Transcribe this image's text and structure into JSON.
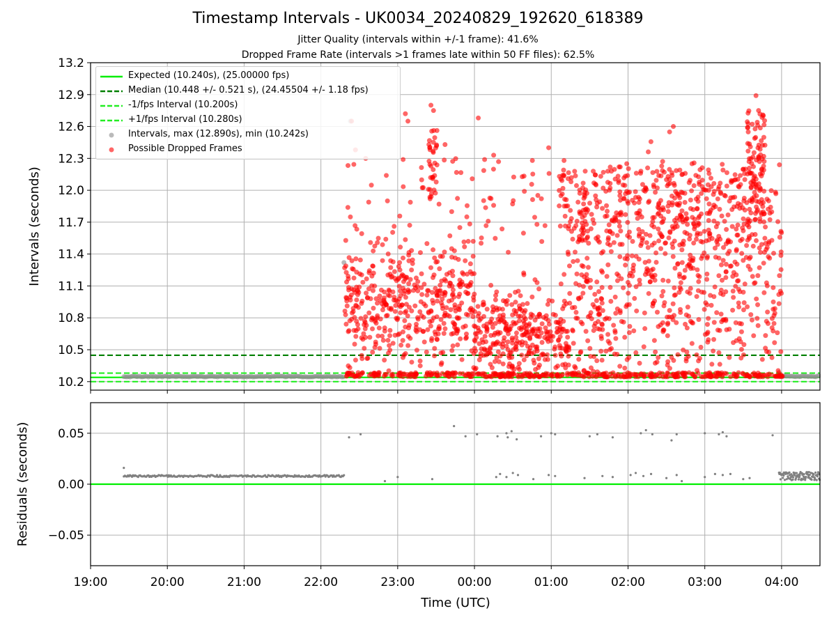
{
  "title": "Timestamp Intervals - UK0034_20240829_192620_618389",
  "subtitle_1": "Jitter Quality (intervals within +/-1 frame): 41.6%",
  "subtitle_2": "Dropped Frame Rate (intervals >1 frames late within 50 FF files): 62.5%",
  "colors": {
    "expected": "#00ee00",
    "median": "#007f00",
    "jitter_band": "#22ee22",
    "intervals": "#8c8c8c",
    "dropped": "#ff0000",
    "residuals": "#808080",
    "grid": "#b0b0b0"
  },
  "chart_data": [
    {
      "type": "scatter",
      "ylabel": "Intervals (seconds)",
      "ylim": [
        10.12,
        13.2
      ],
      "yticks": [
        "10.2",
        "10.5",
        "10.8",
        "11.1",
        "11.4",
        "11.7",
        "12.0",
        "12.3",
        "12.6",
        "12.9",
        "13.2"
      ],
      "xlim": [
        "19:00",
        "04:30"
      ],
      "grid": true,
      "legend_position": "upper-left",
      "legend": [
        "Expected (10.240s), (25.00000 fps)",
        "Median (10.448 +/- 0.521 s), (24.45504 +/- 1.18 fps)",
        "-1/fps Interval (10.200s)",
        "+1/fps Interval (10.280s)",
        "Intervals, max (12.890s), min (10.242s)",
        "Possible Dropped Frames"
      ],
      "reference_lines": [
        {
          "name": "Expected",
          "y": 10.24,
          "style": "solid"
        },
        {
          "name": "Median",
          "y": 10.448,
          "style": "dashed"
        },
        {
          "name": "-1/fps Interval",
          "y": 10.2,
          "style": "dashed"
        },
        {
          "name": "+1/fps Interval",
          "y": 10.28,
          "style": "dashed"
        }
      ],
      "series": [
        {
          "name": "Intervals",
          "segments": [
            {
              "start": "19:26",
              "end": "22:18",
              "y": 10.248
            },
            {
              "start": "03:58",
              "end": "04:30",
              "y": 10.25
            }
          ],
          "points": [
            {
              "x": "22:18",
              "y": 11.32
            },
            {
              "x": "22:23",
              "y": 12.65
            }
          ]
        },
        {
          "name": "Possible Dropped Frames",
          "time_range": [
            "22:18",
            "04:00"
          ],
          "y_range": [
            10.245,
            12.89
          ],
          "max_point": {
            "x": "03:40",
            "y": 12.89
          },
          "clusters": [
            {
              "x": "22:24",
              "y": 12.65
            },
            {
              "x": "22:27",
              "y": 12.38
            },
            {
              "x": "22:35",
              "y": 12.3
            },
            {
              "x": "22:52",
              "y": 11.9
            },
            {
              "x": "23:06",
              "y": 12.72
            },
            {
              "x": "23:08",
              "y": 12.65
            },
            {
              "x": "23:26",
              "y": 12.8
            },
            {
              "x": "23:28",
              "y": 12.75
            },
            {
              "x": "23:37",
              "y": 12.43
            },
            {
              "x": "23:59",
              "y": 11.52
            },
            {
              "x": "00:03",
              "y": 12.68
            },
            {
              "x": "00:15",
              "y": 12.33
            },
            {
              "x": "00:39",
              "y": 11.99
            },
            {
              "x": "00:58",
              "y": 12.4
            },
            {
              "x": "01:10",
              "y": 12.28
            },
            {
              "x": "01:35",
              "y": 12.05
            },
            {
              "x": "01:53",
              "y": 12.22
            },
            {
              "x": "01:59",
              "y": 12.25
            },
            {
              "x": "02:20",
              "y": 12.05
            },
            {
              "x": "02:30",
              "y": 12.1
            },
            {
              "x": "02:50",
              "y": 12.25
            },
            {
              "x": "03:03",
              "y": 12.0
            },
            {
              "x": "03:24",
              "y": 12.1
            },
            {
              "x": "03:40",
              "y": 12.89
            },
            {
              "x": "03:42",
              "y": 12.75
            },
            {
              "x": "03:50",
              "y": 11.5
            }
          ]
        }
      ]
    },
    {
      "type": "scatter",
      "ylabel": "Residuals (seconds)",
      "xlabel": "Time (UTC)",
      "ylim": [
        -0.08,
        0.08
      ],
      "yticks": [
        "−0.05",
        "0.00",
        "0.05"
      ],
      "xticks": [
        "19:00",
        "20:00",
        "21:00",
        "22:00",
        "23:00",
        "00:00",
        "01:00",
        "02:00",
        "03:00",
        "04:00"
      ],
      "grid": true,
      "reference_lines": [
        {
          "name": "Expected",
          "y": 0.0,
          "style": "solid"
        }
      ],
      "series": [
        {
          "name": "Residuals",
          "segments": [
            {
              "start": "19:26",
              "end": "22:18",
              "y": 0.008
            },
            {
              "start": "03:58",
              "end": "04:30",
              "y": 0.008
            }
          ],
          "points": [
            {
              "x": "19:26",
              "y": 0.016
            },
            {
              "x": "22:22",
              "y": 0.046
            },
            {
              "x": "22:31",
              "y": 0.049
            },
            {
              "x": "22:50",
              "y": 0.003
            },
            {
              "x": "23:00",
              "y": 0.007
            },
            {
              "x": "23:27",
              "y": 0.005
            },
            {
              "x": "23:44",
              "y": 0.057
            },
            {
              "x": "23:53",
              "y": 0.047
            },
            {
              "x": "00:02",
              "y": 0.049
            },
            {
              "x": "00:18",
              "y": 0.047
            },
            {
              "x": "00:25",
              "y": 0.05
            },
            {
              "x": "00:26",
              "y": 0.046
            },
            {
              "x": "00:29",
              "y": 0.052
            },
            {
              "x": "00:33",
              "y": 0.044
            },
            {
              "x": "00:52",
              "y": 0.047
            },
            {
              "x": "01:00",
              "y": 0.05
            },
            {
              "x": "01:03",
              "y": 0.049
            },
            {
              "x": "01:30",
              "y": 0.047
            },
            {
              "x": "01:36",
              "y": 0.049
            },
            {
              "x": "01:48",
              "y": 0.046
            },
            {
              "x": "02:10",
              "y": 0.05
            },
            {
              "x": "02:14",
              "y": 0.053
            },
            {
              "x": "02:19",
              "y": 0.049
            },
            {
              "x": "02:34",
              "y": 0.043
            },
            {
              "x": "02:38",
              "y": 0.049
            },
            {
              "x": "03:00",
              "y": 0.05
            },
            {
              "x": "03:11",
              "y": 0.049
            },
            {
              "x": "03:14",
              "y": 0.051
            },
            {
              "x": "03:17",
              "y": 0.047
            },
            {
              "x": "03:53",
              "y": 0.048
            },
            {
              "x": "00:17",
              "y": 0.007
            },
            {
              "x": "00:20",
              "y": 0.01
            },
            {
              "x": "00:25",
              "y": 0.007
            },
            {
              "x": "00:30",
              "y": 0.011
            },
            {
              "x": "00:34",
              "y": 0.009
            },
            {
              "x": "00:46",
              "y": 0.005
            },
            {
              "x": "00:58",
              "y": 0.009
            },
            {
              "x": "01:03",
              "y": 0.008
            },
            {
              "x": "01:26",
              "y": 0.006
            },
            {
              "x": "01:40",
              "y": 0.008
            },
            {
              "x": "01:48",
              "y": 0.007
            },
            {
              "x": "02:02",
              "y": 0.009
            },
            {
              "x": "02:06",
              "y": 0.011
            },
            {
              "x": "02:12",
              "y": 0.008
            },
            {
              "x": "02:18",
              "y": 0.01
            },
            {
              "x": "02:30",
              "y": 0.006
            },
            {
              "x": "02:38",
              "y": 0.009
            },
            {
              "x": "02:42",
              "y": 0.003
            },
            {
              "x": "03:00",
              "y": 0.007
            },
            {
              "x": "03:08",
              "y": 0.01
            },
            {
              "x": "03:14",
              "y": 0.009
            },
            {
              "x": "03:20",
              "y": 0.01
            },
            {
              "x": "03:30",
              "y": 0.005
            },
            {
              "x": "03:35",
              "y": 0.006
            }
          ]
        }
      ]
    }
  ]
}
